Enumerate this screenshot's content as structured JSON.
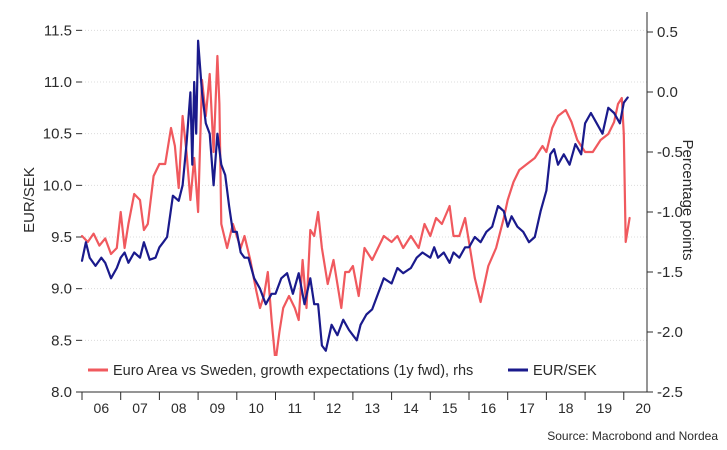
{
  "chart_data": {
    "type": "line",
    "title": "",
    "source": "Source: Macrobond and Nordea",
    "ylabel_left": "EUR/SEK",
    "ylabel_right": "Percentage points",
    "ylim_left": [
      8.0,
      11.6
    ],
    "ylim_right": [
      -2.5,
      0.6
    ],
    "yticks_left": [
      "8.0",
      "8.5",
      "9.0",
      "9.5",
      "10.0",
      "10.5",
      "11.0",
      "11.5"
    ],
    "yticks_right": [
      "-2.5",
      "-2.0",
      "-1.5",
      "-1.0",
      "-0.5",
      "0.0",
      "0.5"
    ],
    "x_categories": [
      "06",
      "07",
      "08",
      "09",
      "10",
      "11",
      "12",
      "13",
      "14",
      "15",
      "16",
      "17",
      "18",
      "19",
      "20"
    ],
    "xlim": [
      2006.0,
      2020.6
    ],
    "grid": true,
    "legend_position": "bottom-left",
    "series": [
      {
        "name": "Euro Area vs Sweden, growth expectations (1y fwd), rhs",
        "axis": "right",
        "color": "#f0595e",
        "x": [
          2006.0,
          2006.15,
          2006.3,
          2006.45,
          2006.6,
          2006.75,
          2006.9,
          2007.0,
          2007.1,
          2007.2,
          2007.35,
          2007.5,
          2007.6,
          2007.7,
          2007.85,
          2008.0,
          2008.15,
          2008.3,
          2008.4,
          2008.5,
          2008.6,
          2008.7,
          2008.8,
          2008.9,
          2009.0,
          2009.1,
          2009.2,
          2009.3,
          2009.4,
          2009.5,
          2009.55,
          2009.6,
          2009.75,
          2009.9,
          2010.0,
          2010.1,
          2010.2,
          2010.35,
          2010.5,
          2010.6,
          2010.7,
          2010.8,
          2010.9,
          2011.0,
          2011.1,
          2011.2,
          2011.35,
          2011.5,
          2011.6,
          2011.7,
          2011.8,
          2011.9,
          2012.0,
          2012.1,
          2012.2,
          2012.35,
          2012.5,
          2012.6,
          2012.7,
          2012.8,
          2012.9,
          2013.0,
          2013.15,
          2013.3,
          2013.5,
          2013.65,
          2013.8,
          2014.0,
          2014.15,
          2014.3,
          2014.5,
          2014.7,
          2014.85,
          2015.0,
          2015.15,
          2015.3,
          2015.5,
          2015.6,
          2015.75,
          2015.9,
          2016.0,
          2016.15,
          2016.3,
          2016.5,
          2016.7,
          2016.9,
          2017.0,
          2017.15,
          2017.3,
          2017.5,
          2017.7,
          2017.9,
          2018.0,
          2018.15,
          2018.3,
          2018.5,
          2018.65,
          2018.8,
          2019.0,
          2019.2,
          2019.4,
          2019.6,
          2019.75,
          2019.85,
          2019.95,
          2020.0,
          2020.05,
          2020.15
        ],
        "values": [
          -1.2,
          -1.25,
          -1.18,
          -1.28,
          -1.22,
          -1.35,
          -1.3,
          -1.0,
          -1.3,
          -1.1,
          -0.85,
          -0.9,
          -1.15,
          -1.1,
          -0.7,
          -0.6,
          -0.6,
          -0.3,
          -0.45,
          -0.8,
          -0.2,
          -0.5,
          -0.9,
          -0.55,
          -1.0,
          0.1,
          -0.2,
          0.15,
          -0.5,
          0.3,
          -0.1,
          -1.1,
          -1.3,
          -1.1,
          -1.2,
          -1.3,
          -1.2,
          -1.4,
          -1.65,
          -1.8,
          -1.7,
          -1.5,
          -1.9,
          -2.25,
          -2.0,
          -1.8,
          -1.7,
          -1.8,
          -1.9,
          -1.4,
          -1.8,
          -1.15,
          -1.2,
          -1.0,
          -1.3,
          -1.6,
          -1.4,
          -1.6,
          -1.8,
          -1.5,
          -1.5,
          -1.45,
          -1.7,
          -1.3,
          -1.4,
          -1.3,
          -1.2,
          -1.25,
          -1.2,
          -1.3,
          -1.2,
          -1.3,
          -1.1,
          -1.2,
          -1.05,
          -1.1,
          -0.95,
          -1.2,
          -1.2,
          -1.05,
          -1.25,
          -1.55,
          -1.75,
          -1.45,
          -1.3,
          -1.05,
          -0.9,
          -0.75,
          -0.65,
          -0.6,
          -0.55,
          -0.45,
          -0.5,
          -0.3,
          -0.2,
          -0.15,
          -0.25,
          -0.4,
          -0.5,
          -0.5,
          -0.4,
          -0.35,
          -0.25,
          -0.1,
          -0.05,
          -0.35,
          -1.25,
          -1.05
        ]
      },
      {
        "name": "EUR/SEK",
        "axis": "left",
        "color": "#1a1a8c",
        "x": [
          2006.0,
          2006.1,
          2006.2,
          2006.35,
          2006.5,
          2006.6,
          2006.75,
          2006.9,
          2007.0,
          2007.1,
          2007.2,
          2007.35,
          2007.5,
          2007.6,
          2007.75,
          2007.9,
          2008.0,
          2008.1,
          2008.2,
          2008.35,
          2008.5,
          2008.6,
          2008.7,
          2008.8,
          2008.85,
          2008.9,
          2008.95,
          2009.0,
          2009.1,
          2009.2,
          2009.3,
          2009.4,
          2009.5,
          2009.6,
          2009.7,
          2009.8,
          2009.9,
          2010.0,
          2010.1,
          2010.2,
          2010.3,
          2010.45,
          2010.6,
          2010.75,
          2010.9,
          2011.0,
          2011.15,
          2011.3,
          2011.45,
          2011.6,
          2011.75,
          2011.9,
          2012.0,
          2012.1,
          2012.2,
          2012.3,
          2012.45,
          2012.6,
          2012.75,
          2012.9,
          2013.0,
          2013.1,
          2013.2,
          2013.35,
          2013.5,
          2013.65,
          2013.8,
          2014.0,
          2014.15,
          2014.3,
          2014.5,
          2014.65,
          2014.8,
          2015.0,
          2015.1,
          2015.2,
          2015.35,
          2015.5,
          2015.6,
          2015.75,
          2015.9,
          2016.0,
          2016.15,
          2016.3,
          2016.45,
          2016.6,
          2016.75,
          2016.9,
          2017.0,
          2017.1,
          2017.25,
          2017.4,
          2017.55,
          2017.7,
          2017.85,
          2018.0,
          2018.1,
          2018.2,
          2018.3,
          2018.45,
          2018.6,
          2018.75,
          2018.9,
          2019.0,
          2019.15,
          2019.3,
          2019.45,
          2019.6,
          2019.75,
          2019.9,
          2020.0,
          2020.1
        ],
        "values": [
          9.27,
          9.45,
          9.3,
          9.22,
          9.3,
          9.25,
          9.1,
          9.2,
          9.3,
          9.35,
          9.25,
          9.35,
          9.3,
          9.45,
          9.28,
          9.3,
          9.4,
          9.45,
          9.5,
          9.9,
          9.85,
          10.0,
          10.4,
          10.9,
          10.2,
          11.0,
          10.5,
          11.4,
          10.9,
          10.6,
          10.5,
          10.0,
          10.5,
          10.2,
          10.1,
          9.8,
          9.55,
          9.55,
          9.35,
          9.3,
          9.3,
          9.1,
          9.0,
          8.85,
          8.95,
          8.95,
          9.1,
          9.15,
          8.95,
          9.15,
          8.85,
          9.1,
          8.85,
          8.85,
          8.45,
          8.4,
          8.65,
          8.55,
          8.7,
          8.6,
          8.55,
          8.5,
          8.65,
          8.75,
          8.8,
          8.95,
          9.1,
          9.05,
          9.2,
          9.15,
          9.2,
          9.3,
          9.35,
          9.3,
          9.4,
          9.3,
          9.35,
          9.25,
          9.35,
          9.3,
          9.4,
          9.4,
          9.5,
          9.45,
          9.55,
          9.6,
          9.8,
          9.75,
          9.6,
          9.7,
          9.6,
          9.55,
          9.45,
          9.5,
          9.75,
          9.95,
          10.3,
          10.35,
          10.2,
          10.3,
          10.2,
          10.4,
          10.3,
          10.6,
          10.7,
          10.6,
          10.5,
          10.75,
          10.7,
          10.6,
          10.8,
          10.85
        ]
      }
    ]
  }
}
